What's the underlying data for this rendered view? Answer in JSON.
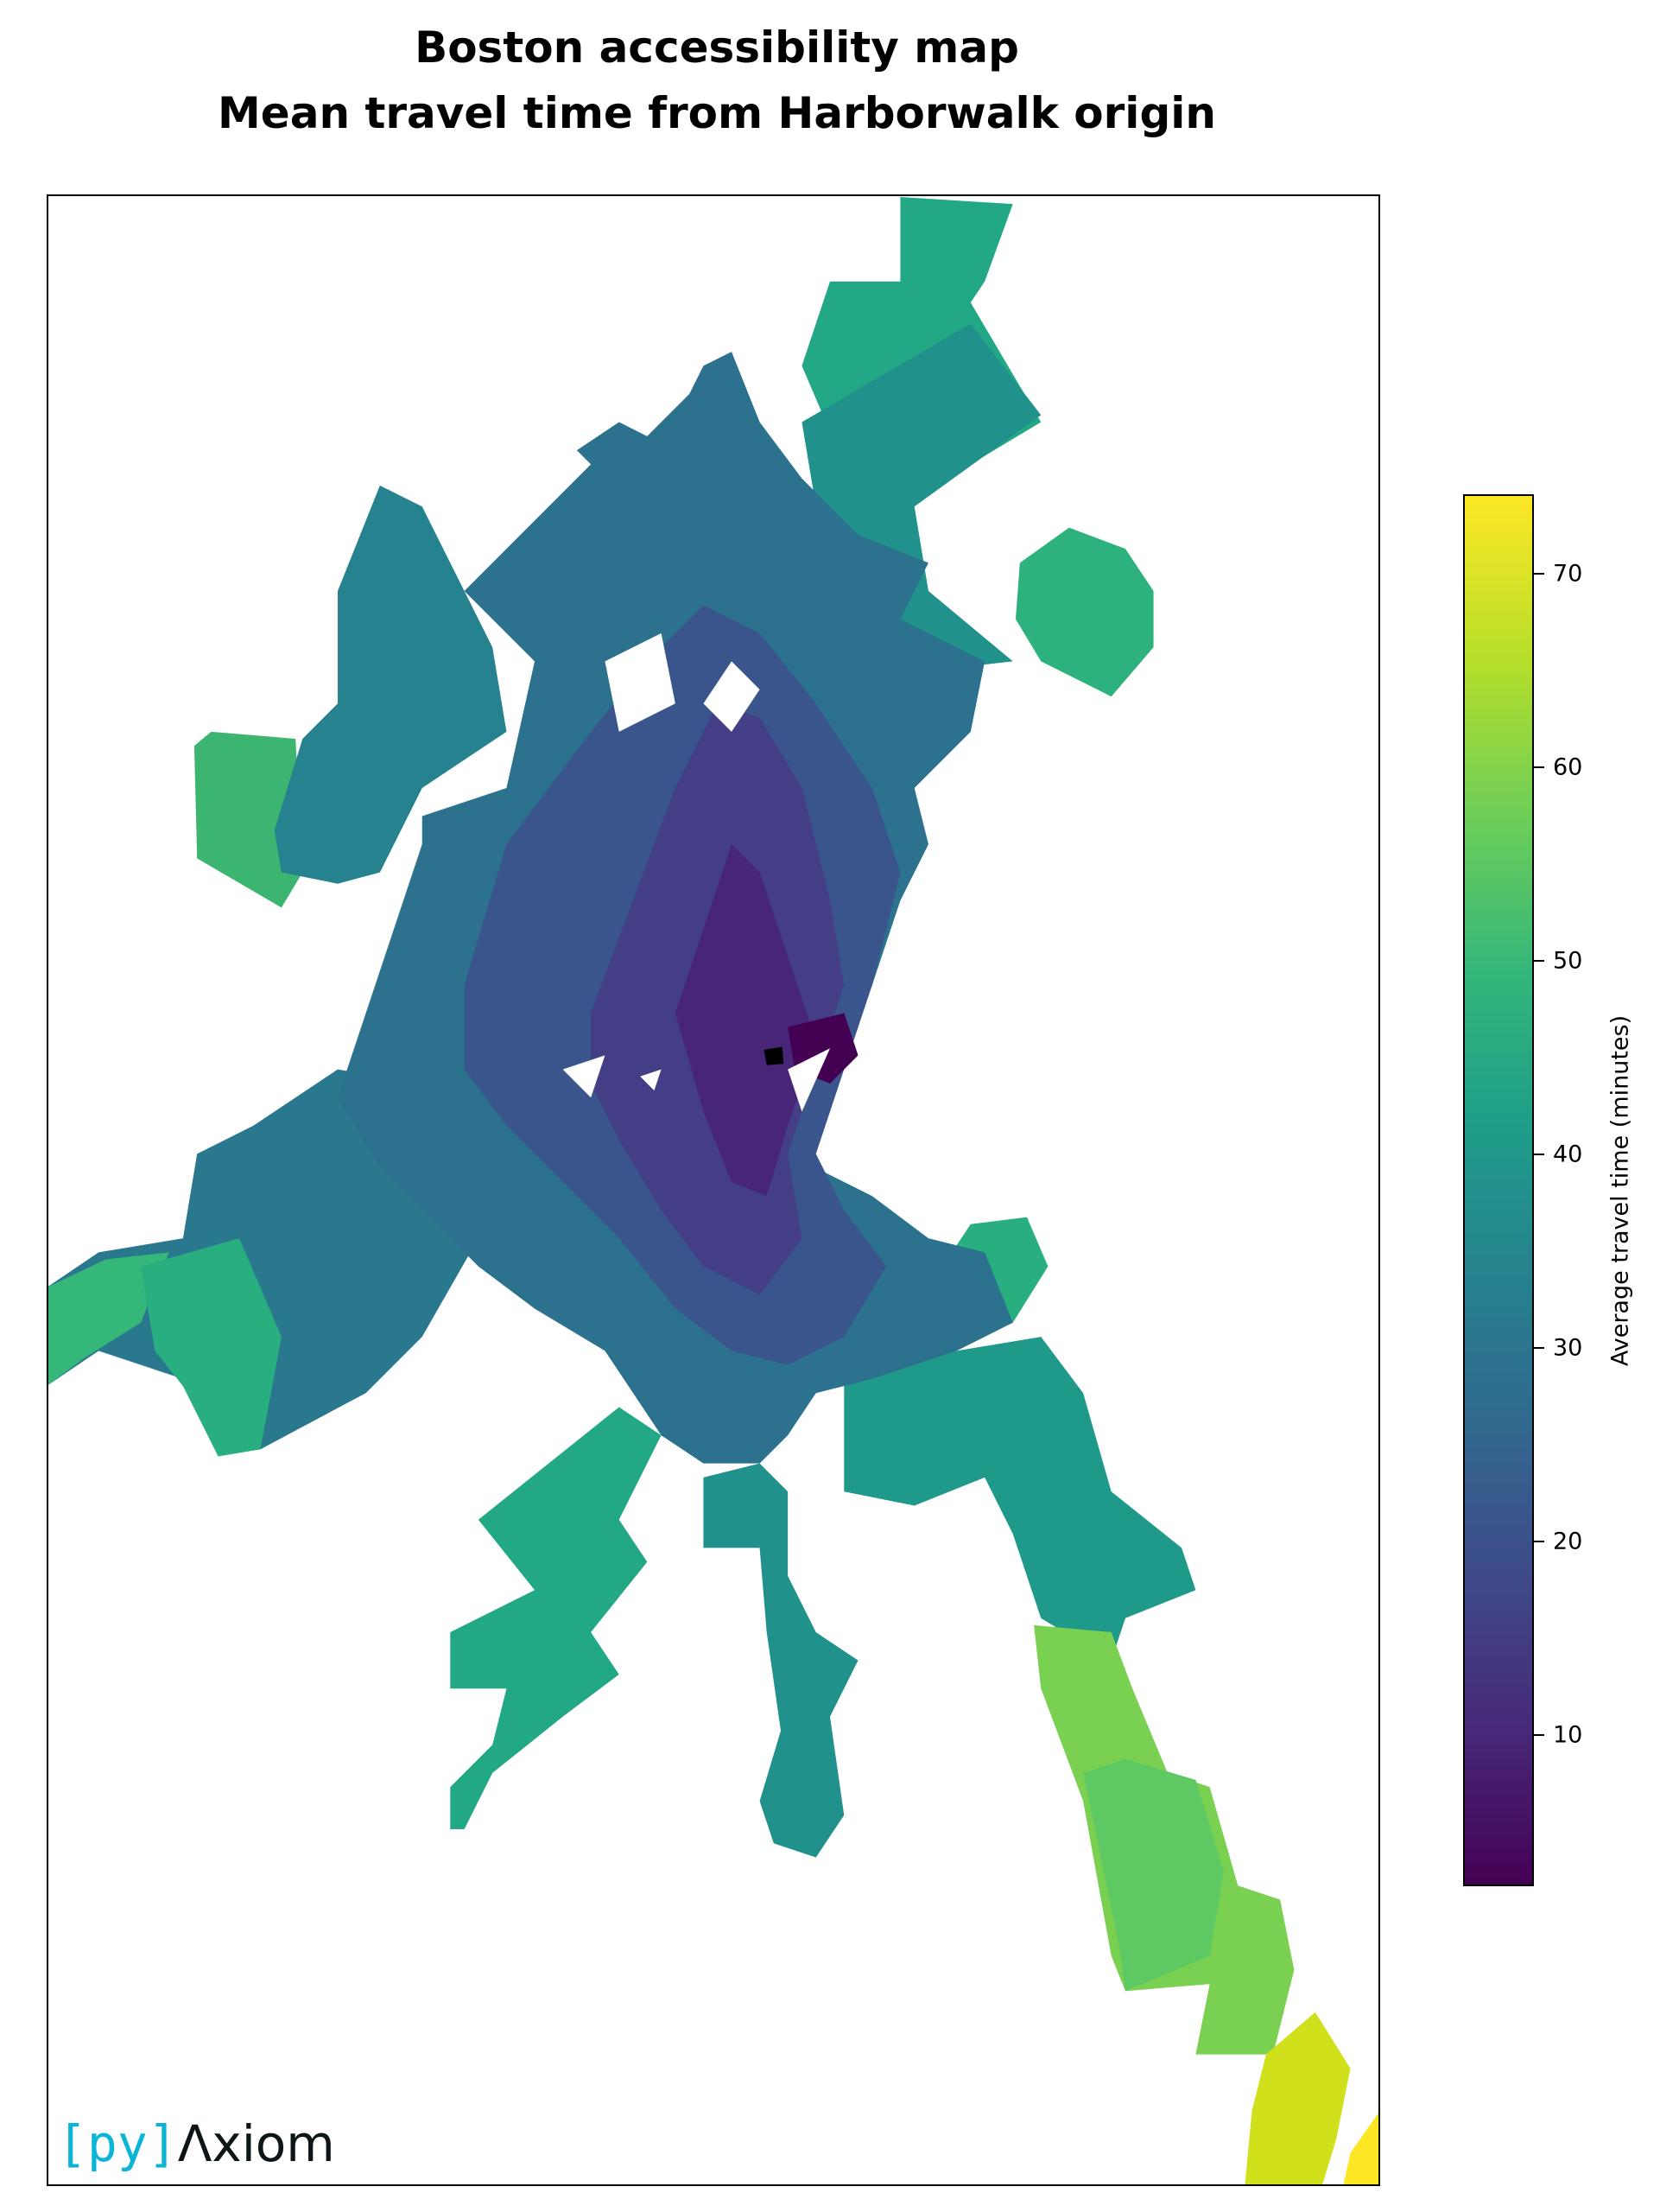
{
  "title_line1": "Boston accessibility map",
  "title_line2": "Mean travel time from Harborwalk origin",
  "colorbar": {
    "label": "Average travel time (minutes)",
    "colormap": "viridis",
    "range": [
      2.2,
      74.1
    ],
    "ticks": [
      "10",
      "20",
      "30",
      "40",
      "50",
      "60",
      "70"
    ]
  },
  "origin_marker": "black-marker",
  "logo": {
    "bracket_text": "[py]",
    "word_text": "Λxiom"
  }
}
